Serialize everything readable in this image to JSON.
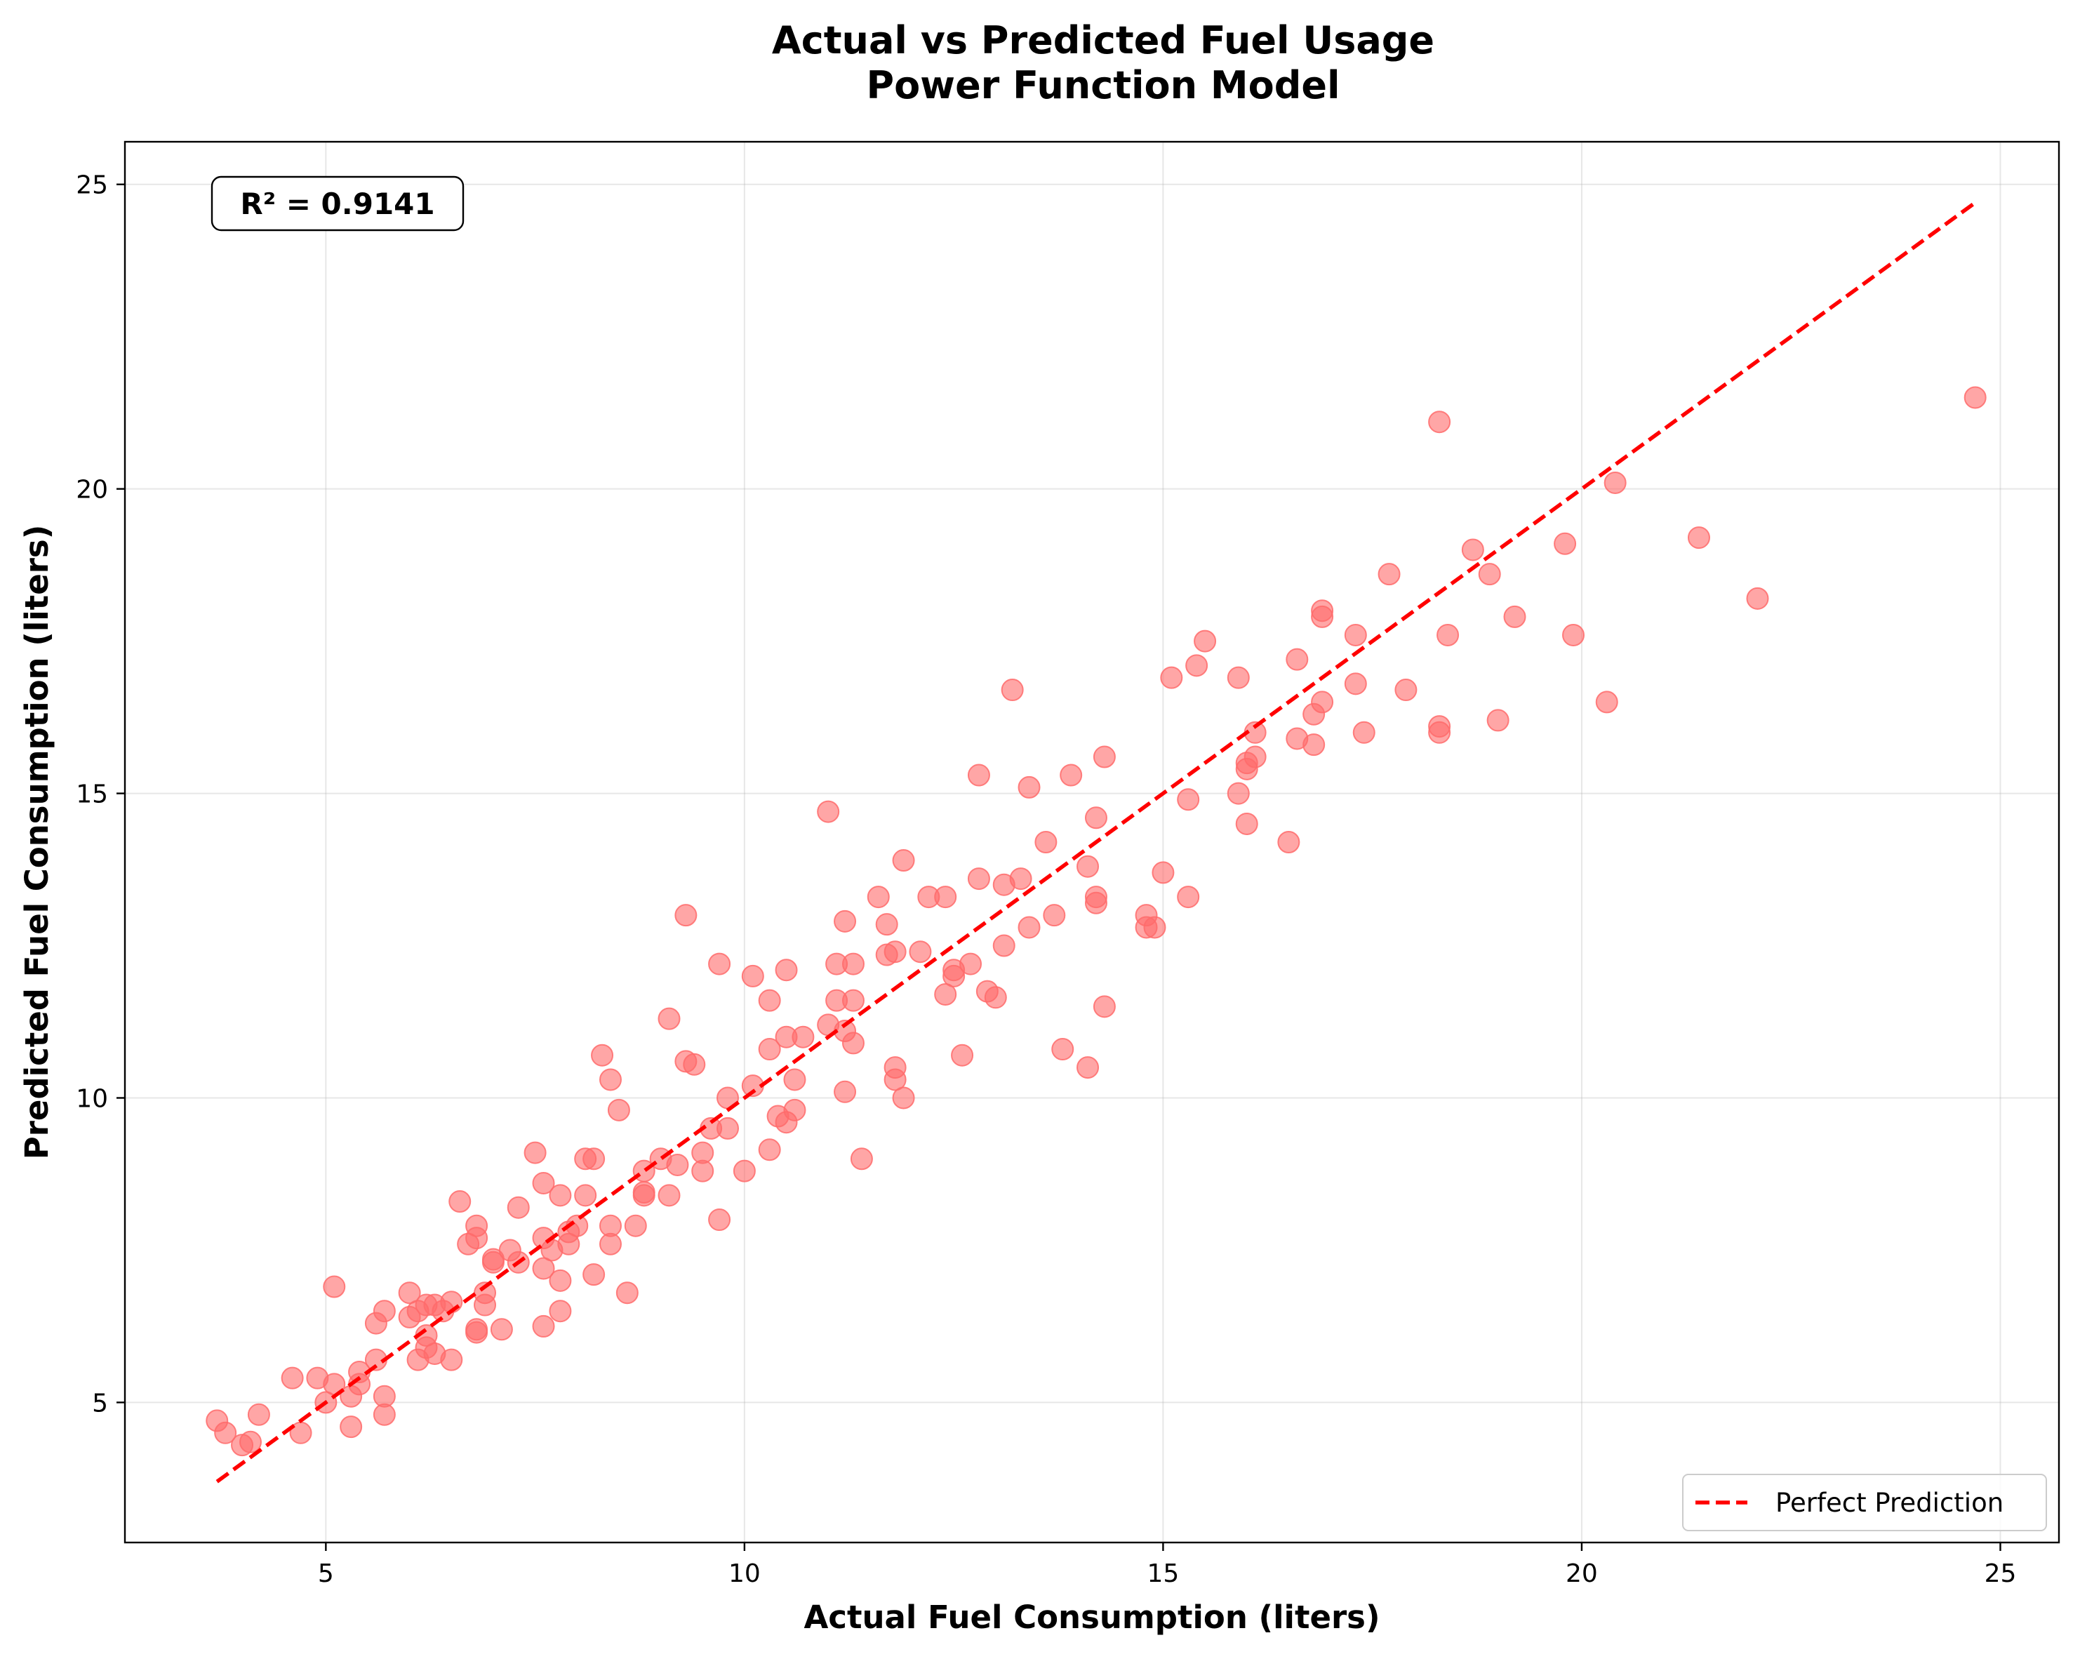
{
  "chart_data": {
    "type": "scatter",
    "title": "Actual vs Predicted Fuel Usage",
    "subtitle": "Power Function Model",
    "xlabel": "Actual Fuel Consumption (liters)",
    "ylabel": "Predicted Fuel Consumption (liters)",
    "xlim": [
      2.6,
      25.7
    ],
    "ylim": [
      2.7,
      25.7
    ],
    "xticks": [
      5,
      10,
      15,
      20,
      25
    ],
    "yticks": [
      5,
      10,
      15,
      20,
      25
    ],
    "grid": true,
    "annotation": "R² = 0.9141",
    "legend_position": "bottom-right",
    "colors": {
      "points": "#ff6b6b",
      "reference_line": "#ff0000"
    },
    "reference_line": {
      "name": "Perfect Prediction",
      "x": [
        3.7,
        24.7
      ],
      "y": [
        3.7,
        24.7
      ],
      "style": "dashed"
    },
    "points": [
      [
        3.7,
        4.7
      ],
      [
        3.8,
        4.5
      ],
      [
        4.0,
        4.3
      ],
      [
        4.2,
        4.8
      ],
      [
        4.1,
        4.35
      ],
      [
        4.6,
        5.4
      ],
      [
        4.7,
        4.5
      ],
      [
        4.9,
        5.4
      ],
      [
        5.0,
        5.0
      ],
      [
        5.1,
        5.3
      ],
      [
        5.1,
        6.9
      ],
      [
        5.3,
        5.1
      ],
      [
        5.4,
        5.5
      ],
      [
        5.4,
        5.3
      ],
      [
        5.3,
        4.6
      ],
      [
        5.6,
        5.7
      ],
      [
        5.6,
        6.3
      ],
      [
        5.7,
        5.1
      ],
      [
        5.7,
        4.8
      ],
      [
        5.7,
        6.5
      ],
      [
        6.0,
        6.4
      ],
      [
        6.0,
        6.8
      ],
      [
        6.1,
        6.5
      ],
      [
        6.1,
        5.7
      ],
      [
        6.2,
        6.6
      ],
      [
        6.2,
        6.1
      ],
      [
        6.2,
        5.9
      ],
      [
        6.3,
        6.6
      ],
      [
        6.3,
        5.8
      ],
      [
        6.4,
        6.5
      ],
      [
        6.5,
        6.65
      ],
      [
        6.5,
        5.7
      ],
      [
        6.6,
        8.3
      ],
      [
        6.7,
        7.6
      ],
      [
        6.8,
        7.9
      ],
      [
        6.8,
        7.7
      ],
      [
        6.8,
        6.2
      ],
      [
        6.8,
        6.15
      ],
      [
        6.9,
        6.8
      ],
      [
        6.9,
        6.6
      ],
      [
        7.0,
        7.3
      ],
      [
        7.0,
        7.35
      ],
      [
        7.1,
        6.2
      ],
      [
        7.2,
        7.5
      ],
      [
        7.3,
        8.2
      ],
      [
        7.3,
        7.3
      ],
      [
        7.5,
        9.1
      ],
      [
        7.6,
        8.6
      ],
      [
        7.6,
        7.7
      ],
      [
        7.6,
        7.2
      ],
      [
        7.6,
        6.25
      ],
      [
        7.7,
        7.5
      ],
      [
        7.8,
        8.4
      ],
      [
        7.8,
        7.0
      ],
      [
        7.8,
        6.5
      ],
      [
        7.9,
        7.8
      ],
      [
        7.9,
        7.6
      ],
      [
        8.0,
        7.9
      ],
      [
        8.1,
        8.4
      ],
      [
        8.1,
        9.0
      ],
      [
        8.2,
        9.0
      ],
      [
        8.2,
        7.1
      ],
      [
        8.3,
        10.7
      ],
      [
        8.4,
        10.3
      ],
      [
        8.4,
        7.9
      ],
      [
        8.4,
        7.6
      ],
      [
        8.5,
        9.8
      ],
      [
        8.6,
        6.8
      ],
      [
        8.7,
        7.9
      ],
      [
        8.8,
        8.8
      ],
      [
        8.8,
        8.4
      ],
      [
        8.8,
        8.45
      ],
      [
        9.0,
        9.0
      ],
      [
        9.1,
        11.3
      ],
      [
        9.1,
        8.4
      ],
      [
        9.2,
        8.9
      ],
      [
        9.3,
        13.0
      ],
      [
        9.3,
        10.6
      ],
      [
        9.4,
        10.55
      ],
      [
        9.5,
        8.8
      ],
      [
        9.5,
        9.1
      ],
      [
        9.6,
        9.5
      ],
      [
        9.7,
        8.0
      ],
      [
        9.7,
        12.2
      ],
      [
        9.8,
        9.5
      ],
      [
        9.8,
        10.0
      ],
      [
        10.0,
        8.8
      ],
      [
        10.1,
        12.0
      ],
      [
        10.1,
        10.2
      ],
      [
        10.3,
        10.8
      ],
      [
        10.3,
        11.6
      ],
      [
        10.3,
        9.15
      ],
      [
        10.4,
        9.7
      ],
      [
        10.5,
        9.6
      ],
      [
        10.5,
        11.0
      ],
      [
        10.5,
        12.1
      ],
      [
        10.6,
        10.3
      ],
      [
        10.6,
        9.8
      ],
      [
        10.7,
        11.0
      ],
      [
        11.0,
        11.2
      ],
      [
        11.0,
        14.7
      ],
      [
        11.1,
        12.2
      ],
      [
        11.1,
        11.6
      ],
      [
        11.2,
        10.1
      ],
      [
        11.2,
        12.9
      ],
      [
        11.2,
        11.1
      ],
      [
        11.3,
        11.6
      ],
      [
        11.3,
        10.9
      ],
      [
        11.3,
        12.2
      ],
      [
        11.4,
        9.0
      ],
      [
        11.6,
        13.3
      ],
      [
        11.7,
        12.35
      ],
      [
        11.7,
        12.85
      ],
      [
        11.8,
        10.5
      ],
      [
        11.8,
        10.3
      ],
      [
        11.8,
        12.4
      ],
      [
        11.9,
        13.9
      ],
      [
        11.9,
        10.0
      ],
      [
        12.1,
        12.4
      ],
      [
        12.2,
        13.3
      ],
      [
        12.4,
        13.3
      ],
      [
        12.4,
        11.7
      ],
      [
        12.5,
        12.0
      ],
      [
        12.5,
        12.1
      ],
      [
        12.6,
        10.7
      ],
      [
        12.7,
        12.2
      ],
      [
        12.8,
        13.6
      ],
      [
        12.8,
        15.3
      ],
      [
        12.9,
        11.75
      ],
      [
        13.0,
        11.65
      ],
      [
        13.1,
        13.5
      ],
      [
        13.1,
        12.5
      ],
      [
        13.2,
        16.7
      ],
      [
        13.3,
        13.6
      ],
      [
        13.4,
        12.8
      ],
      [
        13.4,
        15.1
      ],
      [
        13.6,
        14.2
      ],
      [
        13.7,
        13.0
      ],
      [
        13.8,
        10.8
      ],
      [
        13.9,
        15.3
      ],
      [
        14.1,
        10.5
      ],
      [
        14.1,
        13.8
      ],
      [
        14.2,
        14.6
      ],
      [
        14.2,
        13.3
      ],
      [
        14.2,
        13.2
      ],
      [
        14.3,
        11.5
      ],
      [
        14.3,
        15.6
      ],
      [
        14.8,
        13.0
      ],
      [
        14.8,
        12.8
      ],
      [
        14.9,
        12.8
      ],
      [
        15.0,
        13.7
      ],
      [
        15.1,
        16.9
      ],
      [
        15.3,
        14.9
      ],
      [
        15.3,
        13.3
      ],
      [
        15.4,
        17.1
      ],
      [
        15.5,
        17.5
      ],
      [
        15.9,
        15.0
      ],
      [
        15.9,
        16.9
      ],
      [
        16.0,
        15.4
      ],
      [
        16.0,
        14.5
      ],
      [
        16.0,
        15.5
      ],
      [
        16.1,
        15.6
      ],
      [
        16.1,
        16.0
      ],
      [
        16.5,
        14.2
      ],
      [
        16.6,
        17.2
      ],
      [
        16.6,
        15.9
      ],
      [
        16.8,
        16.3
      ],
      [
        16.8,
        15.8
      ],
      [
        16.9,
        16.5
      ],
      [
        16.9,
        17.9
      ],
      [
        16.9,
        18.0
      ],
      [
        17.3,
        17.6
      ],
      [
        17.3,
        16.8
      ],
      [
        17.4,
        16.0
      ],
      [
        17.7,
        18.6
      ],
      [
        17.9,
        16.7
      ],
      [
        18.3,
        21.1
      ],
      [
        18.3,
        16.0
      ],
      [
        18.3,
        16.1
      ],
      [
        18.4,
        17.6
      ],
      [
        18.7,
        19.0
      ],
      [
        18.9,
        18.6
      ],
      [
        19.0,
        16.2
      ],
      [
        19.2,
        17.9
      ],
      [
        19.8,
        19.1
      ],
      [
        19.9,
        17.6
      ],
      [
        20.3,
        16.5
      ],
      [
        20.4,
        20.1
      ],
      [
        21.4,
        19.2
      ],
      [
        22.1,
        18.2
      ],
      [
        24.7,
        21.5
      ]
    ]
  }
}
